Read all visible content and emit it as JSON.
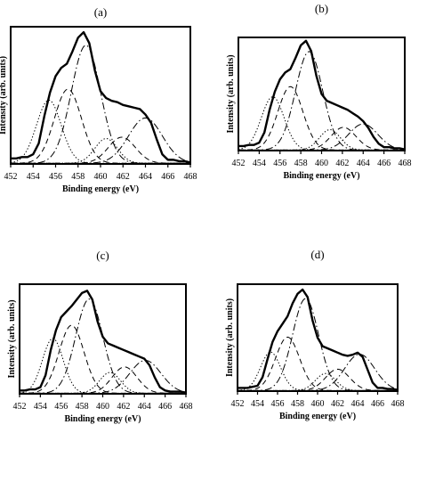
{
  "chart_data": [
    {
      "type": "line",
      "panel_label": "(a)",
      "xlabel": "Binding energy (eV)",
      "ylabel": "Intensity (arb. units)",
      "xlim": [
        452,
        468
      ],
      "xticks": [
        452,
        454,
        456,
        458,
        460,
        462,
        464,
        466,
        468
      ],
      "ylim": [
        0,
        1
      ],
      "series": [
        {
          "style": "solid-thick",
          "x": [
            452.0,
            452.5,
            453.0,
            453.5,
            454.0,
            454.5,
            455.0,
            455.5,
            456.0,
            456.5,
            457.0,
            457.5,
            458.0,
            458.5,
            459.0,
            459.5,
            460.0,
            460.5,
            461.0,
            461.5,
            462.0,
            462.5,
            463.0,
            463.5,
            464.0,
            464.5,
            465.0,
            465.5,
            466.0,
            466.5,
            467.0,
            467.5,
            468.0
          ],
          "y": [
            0.04,
            0.04,
            0.05,
            0.05,
            0.07,
            0.15,
            0.35,
            0.52,
            0.64,
            0.7,
            0.73,
            0.82,
            0.92,
            0.96,
            0.88,
            0.68,
            0.53,
            0.48,
            0.46,
            0.45,
            0.43,
            0.42,
            0.41,
            0.4,
            0.36,
            0.3,
            0.18,
            0.07,
            0.03,
            0.03,
            0.02,
            0.02,
            0.01
          ]
        },
        {
          "style": "dotted",
          "center": 455.4,
          "height": 0.46,
          "width": 1.1
        },
        {
          "style": "dashed",
          "center": 457.1,
          "height": 0.54,
          "width": 1.2
        },
        {
          "style": "dash-dot",
          "center": 458.7,
          "height": 0.86,
          "width": 1.3
        },
        {
          "style": "dotted",
          "center": 460.5,
          "height": 0.18,
          "width": 1.0
        },
        {
          "style": "dashed",
          "center": 461.9,
          "height": 0.19,
          "width": 1.2
        },
        {
          "style": "dash-dot",
          "center": 464.0,
          "height": 0.33,
          "width": 1.5
        }
      ]
    },
    {
      "type": "line",
      "panel_label": "(b)",
      "xlabel": "Binding energy (eV)",
      "ylabel": "Intensity (arb. units)",
      "xlim": [
        452,
        468
      ],
      "xticks": [
        452,
        454,
        456,
        458,
        460,
        462,
        464,
        466,
        468
      ],
      "ylim": [
        0,
        1
      ],
      "series": [
        {
          "style": "solid-thick",
          "x": [
            452.0,
            452.5,
            453.0,
            453.5,
            454.0,
            454.5,
            455.0,
            455.5,
            456.0,
            456.5,
            457.0,
            457.5,
            458.0,
            458.5,
            459.0,
            459.5,
            460.0,
            460.5,
            461.0,
            461.5,
            462.0,
            462.5,
            463.0,
            463.5,
            464.0,
            464.5,
            465.0,
            465.5,
            466.0,
            466.5,
            467.0,
            467.5,
            468.0
          ],
          "y": [
            0.04,
            0.04,
            0.05,
            0.05,
            0.07,
            0.16,
            0.36,
            0.52,
            0.63,
            0.69,
            0.72,
            0.82,
            0.93,
            0.97,
            0.88,
            0.66,
            0.5,
            0.44,
            0.42,
            0.4,
            0.38,
            0.36,
            0.33,
            0.3,
            0.26,
            0.2,
            0.12,
            0.06,
            0.03,
            0.03,
            0.02,
            0.02,
            0.01
          ]
        },
        {
          "style": "dotted",
          "center": 455.3,
          "height": 0.47,
          "width": 1.1
        },
        {
          "style": "dashed",
          "center": 457.0,
          "height": 0.56,
          "width": 1.2
        },
        {
          "style": "dash-dot",
          "center": 458.8,
          "height": 0.87,
          "width": 1.3
        },
        {
          "style": "dotted",
          "center": 460.8,
          "height": 0.18,
          "width": 1.0
        },
        {
          "style": "dashed",
          "center": 462.1,
          "height": 0.2,
          "width": 1.2
        },
        {
          "style": "dash-dot",
          "center": 464.0,
          "height": 0.23,
          "width": 1.4
        }
      ]
    },
    {
      "type": "line",
      "panel_label": "(c)",
      "xlabel": "Binding energy (eV)",
      "ylabel": "Intensity (arb. units)",
      "xlim": [
        452,
        468
      ],
      "xticks": [
        452,
        454,
        456,
        458,
        460,
        462,
        464,
        466,
        468
      ],
      "ylim": [
        0,
        1
      ],
      "series": [
        {
          "style": "solid-thick",
          "x": [
            452.0,
            452.5,
            453.0,
            453.5,
            454.0,
            454.5,
            455.0,
            455.5,
            456.0,
            456.5,
            457.0,
            457.5,
            458.0,
            458.5,
            459.0,
            459.5,
            460.0,
            460.5,
            461.0,
            461.5,
            462.0,
            462.5,
            463.0,
            463.5,
            464.0,
            464.5,
            465.0,
            465.5,
            466.0,
            466.5,
            467.0,
            467.5,
            468.0
          ],
          "y": [
            0.03,
            0.03,
            0.04,
            0.04,
            0.06,
            0.17,
            0.4,
            0.58,
            0.7,
            0.75,
            0.8,
            0.86,
            0.92,
            0.94,
            0.86,
            0.66,
            0.52,
            0.46,
            0.44,
            0.42,
            0.4,
            0.38,
            0.36,
            0.34,
            0.32,
            0.26,
            0.15,
            0.06,
            0.03,
            0.02,
            0.02,
            0.02,
            0.01
          ]
        },
        {
          "style": "dotted",
          "center": 455.2,
          "height": 0.5,
          "width": 1.0
        },
        {
          "style": "dashed",
          "center": 457.0,
          "height": 0.62,
          "width": 1.2
        },
        {
          "style": "dash-dot",
          "center": 458.7,
          "height": 0.86,
          "width": 1.3
        },
        {
          "style": "dotted",
          "center": 460.7,
          "height": 0.19,
          "width": 1.0
        },
        {
          "style": "dashed",
          "center": 462.1,
          "height": 0.24,
          "width": 1.2
        },
        {
          "style": "dash-dot",
          "center": 464.1,
          "height": 0.3,
          "width": 1.5
        }
      ]
    },
    {
      "type": "line",
      "panel_label": "(d)",
      "xlabel": "Binding energy (eV)",
      "ylabel": "Intensity (arb. units)",
      "xlim": [
        452,
        468
      ],
      "xticks": [
        452,
        454,
        456,
        458,
        460,
        462,
        464,
        466,
        468
      ],
      "ylim": [
        0,
        1
      ],
      "series": [
        {
          "style": "solid-thick",
          "x": [
            452.0,
            452.5,
            453.0,
            453.5,
            454.0,
            454.5,
            455.0,
            455.5,
            456.0,
            456.5,
            457.0,
            457.5,
            458.0,
            458.5,
            459.0,
            459.5,
            460.0,
            460.5,
            461.0,
            461.5,
            462.0,
            462.5,
            463.0,
            463.5,
            464.0,
            464.5,
            465.0,
            465.5,
            466.0,
            466.5,
            467.0,
            467.5,
            468.0
          ],
          "y": [
            0.03,
            0.03,
            0.03,
            0.04,
            0.05,
            0.13,
            0.3,
            0.46,
            0.56,
            0.63,
            0.7,
            0.82,
            0.91,
            0.95,
            0.88,
            0.66,
            0.5,
            0.42,
            0.4,
            0.38,
            0.36,
            0.34,
            0.33,
            0.34,
            0.36,
            0.32,
            0.2,
            0.08,
            0.03,
            0.03,
            0.02,
            0.02,
            0.01
          ]
        },
        {
          "style": "dotted",
          "center": 455.3,
          "height": 0.36,
          "width": 1.0
        },
        {
          "style": "dashed",
          "center": 457.0,
          "height": 0.5,
          "width": 1.2
        },
        {
          "style": "dash-dot",
          "center": 458.8,
          "height": 0.86,
          "width": 1.3
        },
        {
          "style": "dotted",
          "center": 460.8,
          "height": 0.16,
          "width": 1.0
        },
        {
          "style": "dashed",
          "center": 462.0,
          "height": 0.2,
          "width": 1.2
        },
        {
          "style": "dash-dot",
          "center": 464.2,
          "height": 0.34,
          "width": 1.5
        }
      ]
    }
  ]
}
